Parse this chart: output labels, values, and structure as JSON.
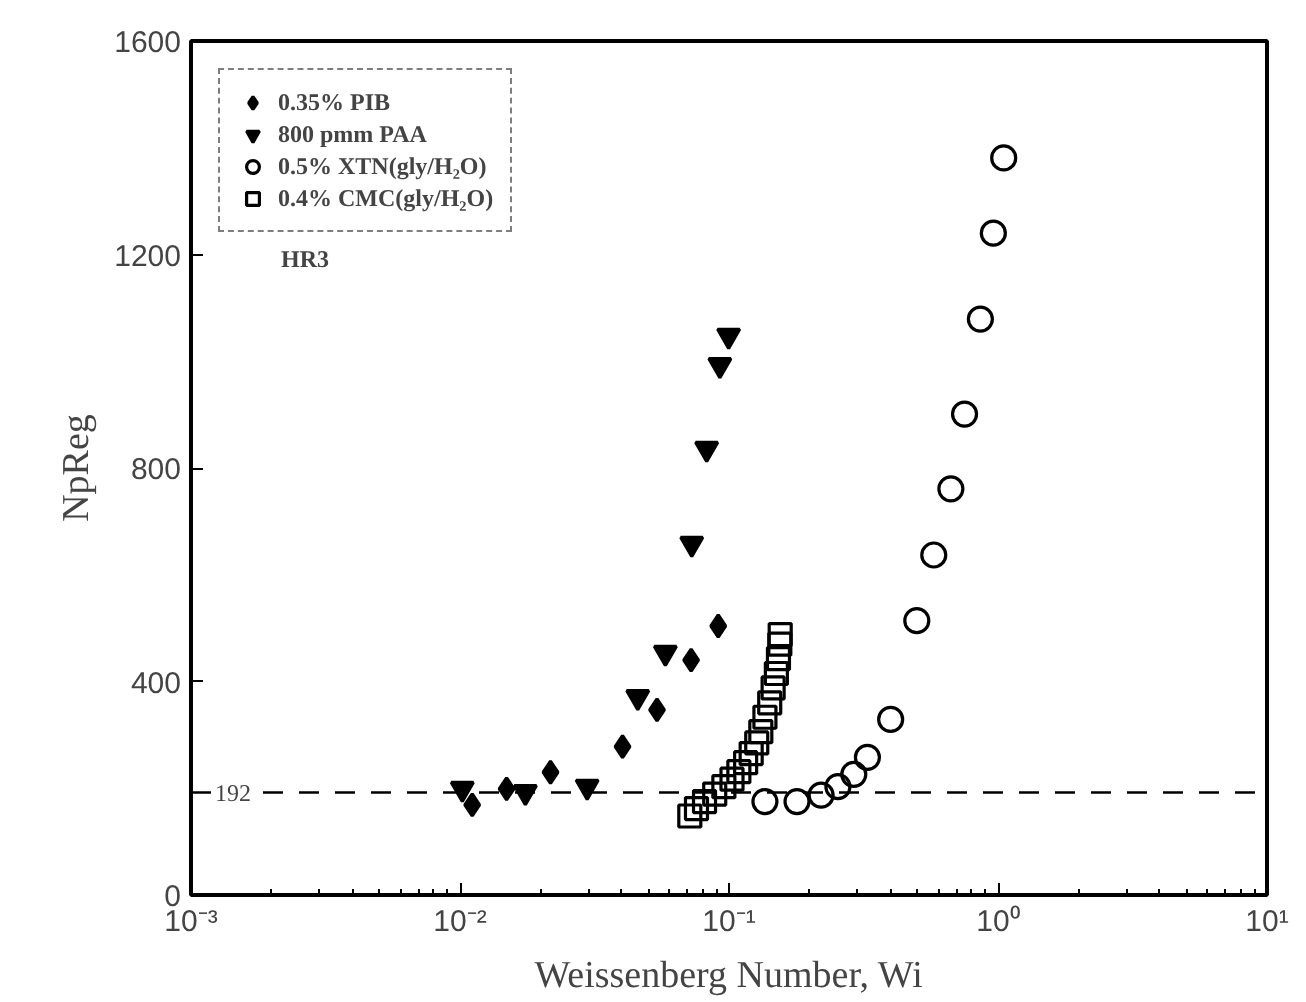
{
  "chart_data": {
    "type": "scatter",
    "xlabel": "Weissenberg Number, Wi",
    "ylabel": "NpReg",
    "log": "x",
    "xlim": [
      0.001,
      10
    ],
    "xticks": [
      {
        "value": 0.001,
        "label": "10⁻³"
      },
      {
        "value": 0.01,
        "label": "10⁻²"
      },
      {
        "value": 0.1,
        "label": "10⁻¹"
      },
      {
        "value": 1,
        "label": "10⁰"
      },
      {
        "value": 10,
        "label": "10¹"
      }
    ],
    "ylim": [
      0,
      1600
    ],
    "yticks": [
      0,
      400,
      800,
      1200,
      1600
    ],
    "grid": false,
    "legend": "top left",
    "annotations": [
      "HR3"
    ],
    "ref_lines": [
      {
        "axis": "y",
        "value": 192,
        "label": "192",
        "color": "#000000",
        "line_style": "dashed"
      }
    ],
    "series": [
      {
        "name": "0.35% PIB",
        "color": "#000000",
        "marker": "diamond",
        "x": [
          0.0912,
          0.0723,
          0.054,
          0.0402,
          0.0217,
          0.0149,
          0.0111
        ],
        "values": [
          504,
          440,
          347,
          278,
          230,
          199,
          169
        ]
      },
      {
        "name": "800 pmm PAA",
        "color": "#000000",
        "marker": "triangle",
        "x": [
          0.0997,
          0.0925,
          0.0826,
          0.0727,
          0.058,
          0.0458,
          0.0297,
          0.0175,
          0.0102
        ],
        "values": [
          1048,
          993,
          836,
          658,
          454,
          371,
          203,
          193,
          199
        ]
      },
      {
        "name": "0.5% XTN(gly/H₂O)",
        "color": "#000000",
        "marker": "circle",
        "x": [
          0.136,
          0.179,
          0.22,
          0.254,
          0.291,
          0.327,
          0.399,
          0.499,
          0.577,
          0.668,
          0.751,
          0.86,
          0.961,
          1.05
        ],
        "values": [
          175,
          175,
          187,
          203,
          226,
          258,
          329,
          514,
          637,
          761,
          901,
          1079,
          1240,
          1381
        ]
      },
      {
        "name": "0.4% CMC(gly/H₂O)",
        "color": "#000000",
        "marker": "square",
        "x": [
          0.0715,
          0.0757,
          0.0811,
          0.0885,
          0.0957,
          0.1026,
          0.1088,
          0.1153,
          0.1209,
          0.1268,
          0.1313,
          0.136,
          0.1417,
          0.1459,
          0.15,
          0.1527,
          0.1545,
          0.155
        ],
        "values": [
          148,
          162,
          175,
          189,
          203,
          217,
          231,
          248,
          265,
          285,
          306,
          333,
          360,
          388,
          415,
          443,
          470,
          488
        ]
      }
    ]
  }
}
